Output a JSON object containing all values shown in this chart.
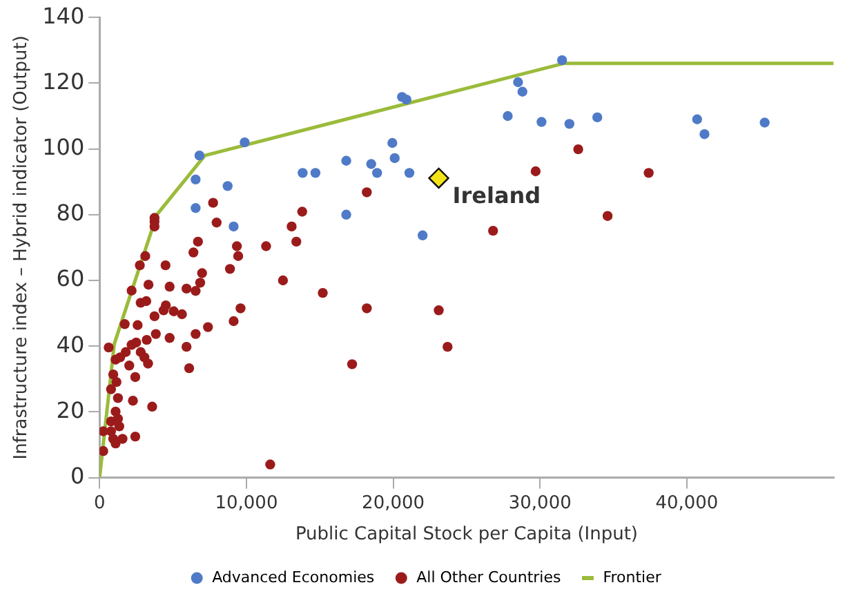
{
  "chart_data": {
    "type": "scatter",
    "xlabel": "Public Capital Stock per Capita (Input)",
    "ylabel": "Infrastructure index – Hybrid indicator (Output)",
    "xlim": [
      0,
      50000
    ],
    "xticks": [
      0,
      {
        "value": 10000,
        "label": "10,000"
      },
      {
        "value": 20000,
        "label": "20,000"
      },
      {
        "value": 30000,
        "label": "30,000"
      },
      {
        "value": 40000,
        "label": "40,000"
      }
    ],
    "ylim": [
      0,
      140
    ],
    "yticks": [
      0,
      20,
      40,
      60,
      80,
      100,
      120,
      140
    ],
    "grid": false,
    "legend": "bottom",
    "marker": "circle",
    "series": [
      {
        "name": "Advanced Economies",
        "type": "scatter",
        "color": "#4f7ac7",
        "x": [
          6800,
          6540,
          6540,
          8720,
          9130,
          9880,
          16800,
          13830,
          14700,
          16800,
          18500,
          18900,
          19940,
          20100,
          20600,
          20900,
          21100,
          22000,
          27800,
          28500,
          28800,
          30100,
          31500,
          32000,
          33900,
          40700,
          41200,
          45300
        ],
        "values": [
          98,
          90.7,
          82,
          88.7,
          76.4,
          102,
          96.4,
          92.7,
          92.7,
          80,
          95.4,
          92.7,
          101.8,
          97.2,
          115.8,
          115,
          92.7,
          73.7,
          110,
          120.3,
          117.4,
          108.2,
          127,
          107.6,
          109.6,
          109,
          104.5,
          108
        ]
      },
      {
        "name": "All Other Countries",
        "type": "scatter",
        "color": "#9b1b1b",
        "x": [
          18200,
          29700,
          32600,
          37400,
          26800,
          34600,
          18200,
          23100,
          23700,
          17200,
          7730,
          7970,
          13800,
          13080,
          13400,
          11340,
          9350,
          9440,
          8880,
          6700,
          6390,
          6980,
          6850,
          5920,
          6540,
          12490,
          15200,
          9600,
          9130,
          7380,
          6540,
          5920,
          6100,
          11620,
          4490,
          4770,
          4770,
          3740,
          3740,
          3740,
          3330,
          3110,
          2740,
          2180,
          2800,
          3180,
          4510,
          4360,
          5050,
          5610,
          3740,
          3830,
          2590,
          1710,
          3210,
          2490,
          2180,
          2800,
          1780,
          1400,
          3050,
          3300,
          2020,
          620,
          1090,
          2430,
          930,
          1150,
          780,
          2270,
          1250,
          3580,
          1090,
          1250,
          780,
          1340,
          780,
          250,
          930,
          1560,
          2430,
          1090,
          250
        ],
        "values": [
          86.8,
          93.2,
          99.9,
          92.7,
          75.1,
          79.6,
          51.5,
          50.9,
          39.8,
          34.5,
          83.6,
          77.6,
          80.9,
          76.4,
          71.8,
          70.4,
          70.4,
          67.4,
          63.5,
          71.8,
          68.5,
          62.2,
          59.3,
          57.5,
          56.8,
          60,
          56.2,
          51.5,
          47.6,
          45.8,
          43.7,
          39.8,
          33.3,
          4,
          64.6,
          58.1,
          42.5,
          77.9,
          79,
          76.4,
          58.7,
          67.4,
          64.6,
          56.9,
          53.2,
          53.7,
          52.4,
          50.9,
          50.6,
          49.7,
          49.1,
          43.7,
          46.4,
          46.7,
          41.9,
          41.1,
          40.4,
          38.2,
          38.2,
          36.6,
          36.6,
          34.7,
          34.1,
          39.6,
          35.9,
          30.6,
          31.4,
          29.1,
          26.9,
          23.4,
          24.2,
          21.6,
          20.1,
          17.9,
          17.1,
          15.6,
          14.1,
          14.1,
          11.8,
          11.8,
          12.5,
          10.4,
          8.1
        ]
      },
      {
        "name": "Frontier",
        "type": "line",
        "color": "#9bbb3b",
        "marker": "none",
        "x": [
          0,
          1000,
          3900,
          7170,
          31600,
          50000
        ],
        "values": [
          0,
          40.7,
          80,
          98,
          126,
          126
        ]
      },
      {
        "name": "Ireland",
        "type": "scatter",
        "color": "#f5e31a",
        "marker": "diamond",
        "x": [
          23100
        ],
        "values": [
          91.1
        ]
      }
    ]
  }
}
